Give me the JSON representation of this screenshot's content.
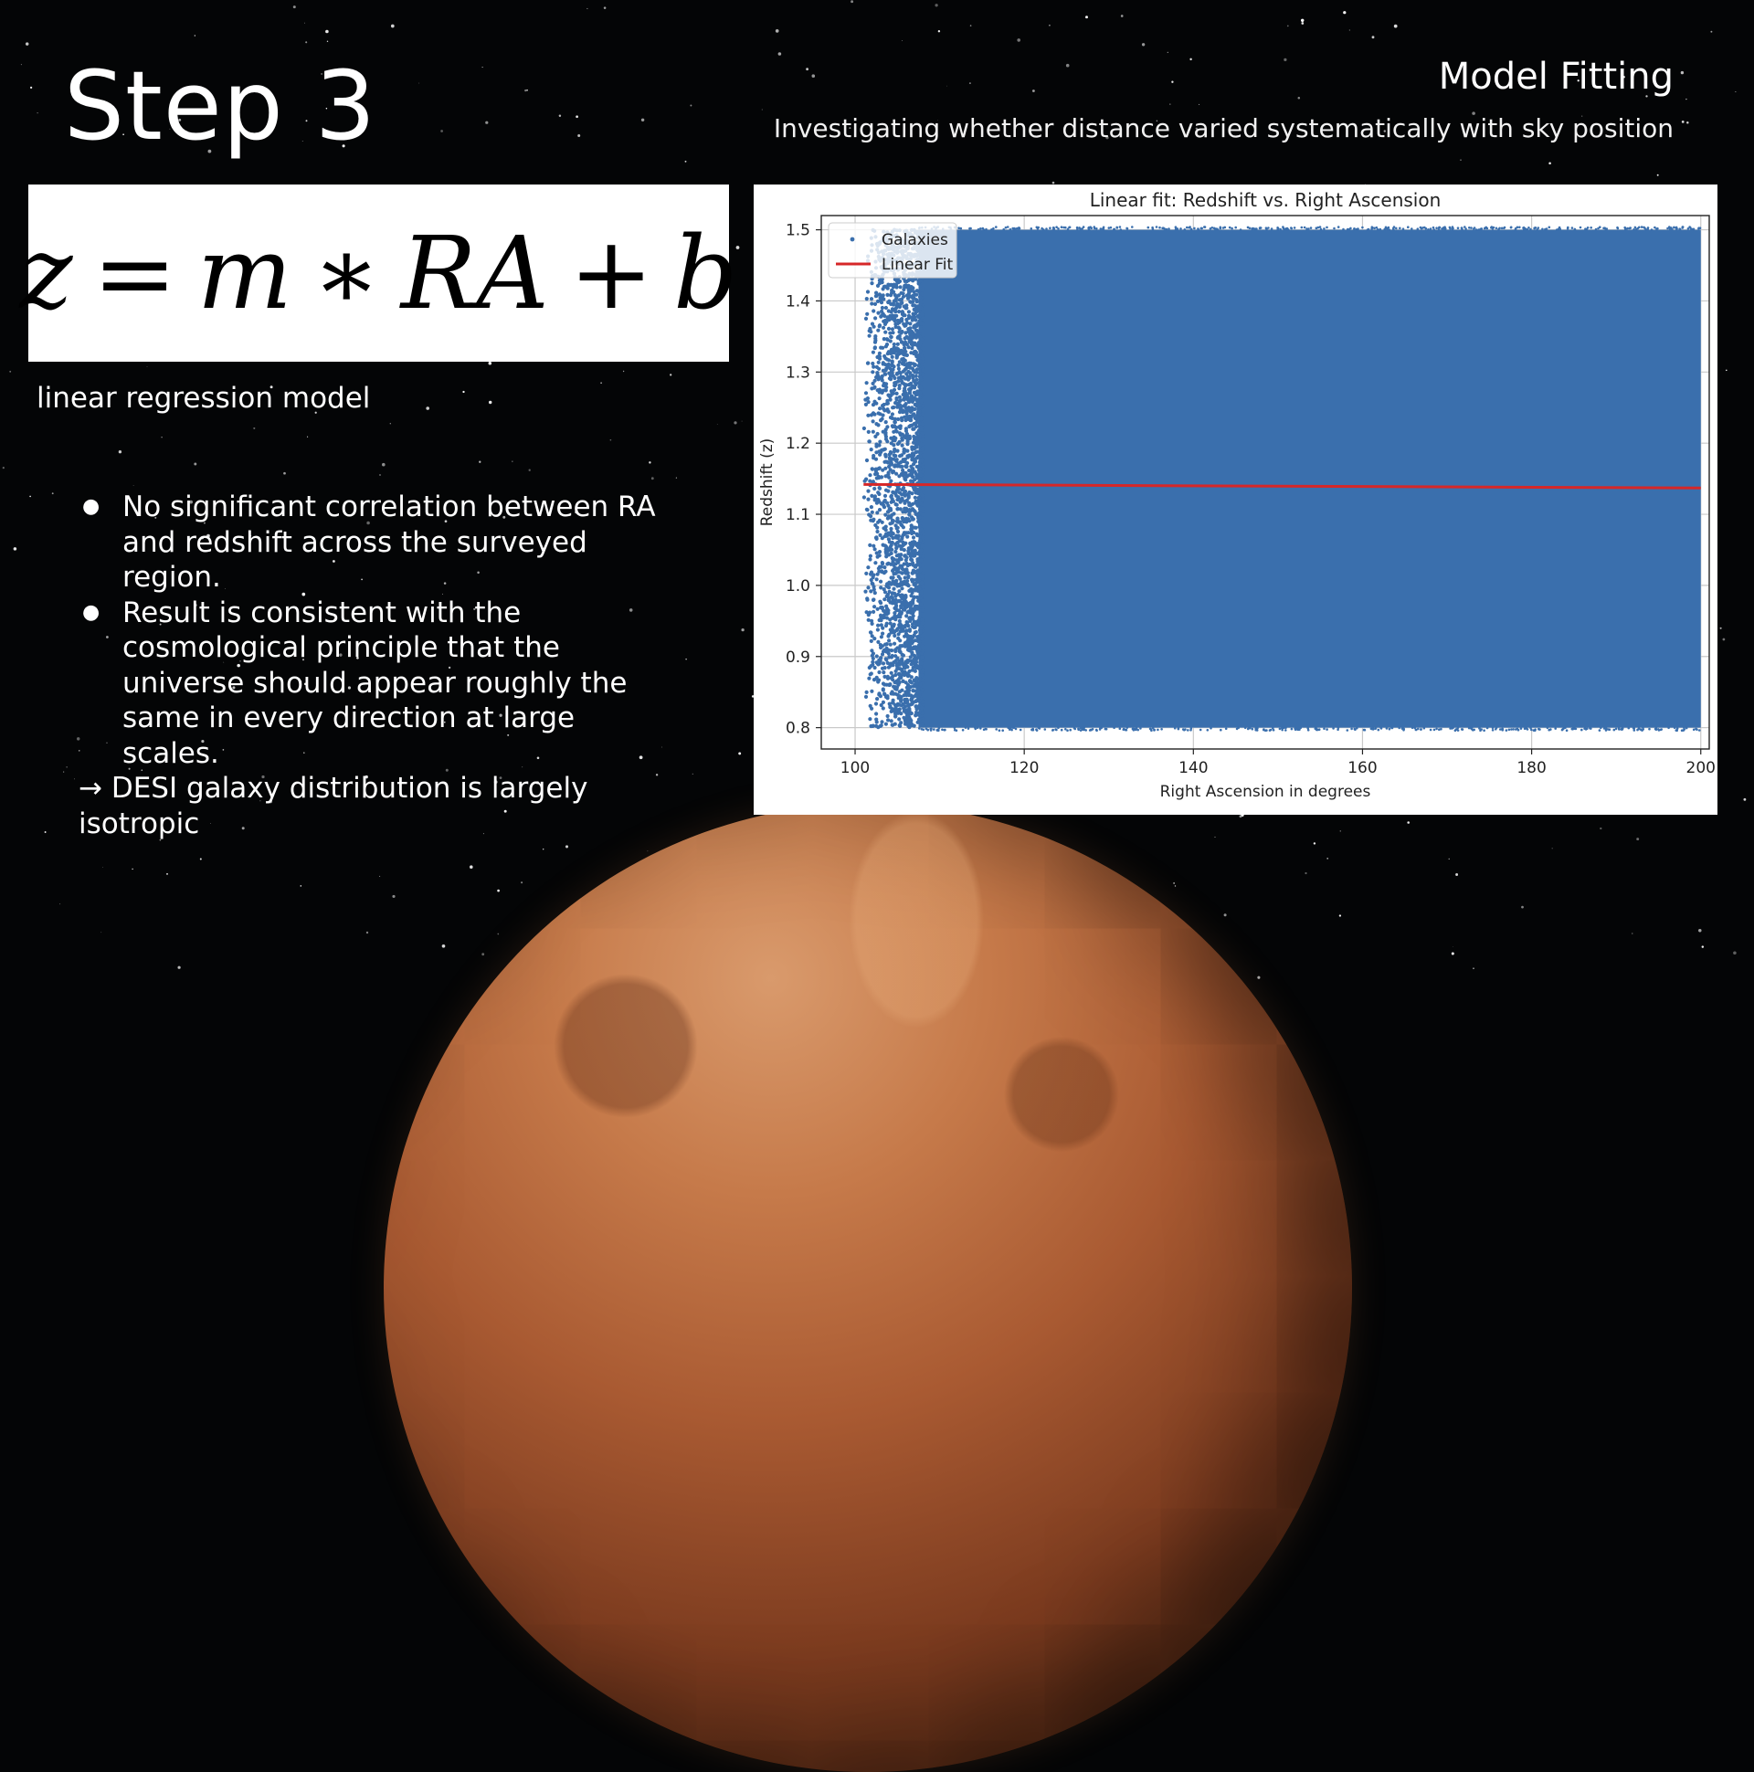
{
  "slide": {
    "step_title": "Step 3",
    "section_title": "Model Fitting",
    "subtitle": "Investigating whether distance varied systematically with sky position",
    "formula": {
      "lhs": "z",
      "eq": "=",
      "m": "m",
      "times": "∗",
      "ra": "RA",
      "plus": "+",
      "b": "b"
    },
    "formula_caption": "linear regression model",
    "bullets": [
      "No significant correlation between RA and redshift across the surveyed region.",
      "Result is consistent with the cosmological principle that the universe should appear roughly the same in every direction at large scales."
    ],
    "conclusion": "→ DESI galaxy distribution is largely isotropic"
  },
  "colors": {
    "background": "#040506",
    "scatter": "#3a6fad",
    "fit_line": "#d62728"
  },
  "chart_data": {
    "type": "scatter",
    "title": "Linear fit: Redshift vs. Right Ascension",
    "xlabel": "Right Ascension in degrees",
    "ylabel": "Redshift (z)",
    "xlim": [
      96,
      201
    ],
    "ylim": [
      0.77,
      1.52
    ],
    "xticks": [
      100,
      120,
      140,
      160,
      180,
      200
    ],
    "yticks": [
      0.8,
      0.9,
      1.0,
      1.1,
      1.2,
      1.3,
      1.4,
      1.5
    ],
    "grid": true,
    "legend_position": "top-left",
    "series": [
      {
        "name": "Galaxies",
        "kind": "scatter",
        "color": "#3a6fad",
        "dense_x_range": [
          107.5,
          200
        ],
        "sparse_x_range": [
          101,
          107.5
        ],
        "y_range": [
          0.8,
          1.5
        ]
      },
      {
        "name": "Linear Fit",
        "kind": "line",
        "color": "#d62728",
        "x": [
          101,
          200
        ],
        "y": [
          1.142,
          1.137
        ]
      }
    ]
  }
}
